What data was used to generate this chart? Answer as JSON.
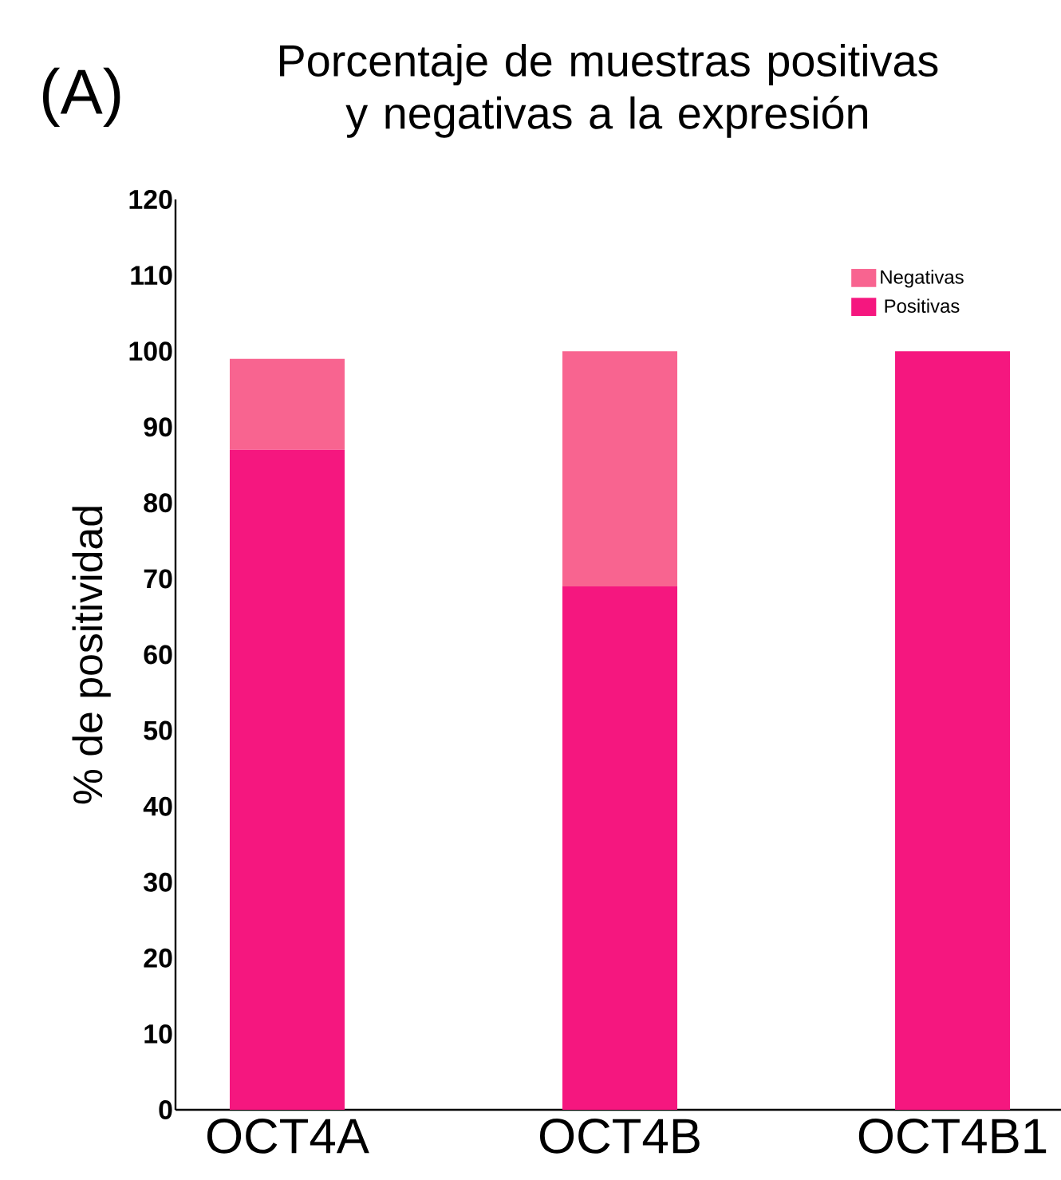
{
  "chart_data": {
    "type": "bar",
    "title": "Porcentaje de muestras positivas y negativas a la expresión",
    "ylabel": "% de positividad",
    "annotations": [
      "(A)"
    ],
    "categories": [
      "OCT4A",
      "OCT4B",
      "OCT4B1"
    ],
    "stacked": true,
    "legend": "top right",
    "grid": false,
    "series": [
      {
        "name": "Positivas",
        "color": "#f5177f",
        "values": [
          87,
          69,
          100
        ]
      },
      {
        "name": "Negativas",
        "color": "#f86490",
        "values": [
          12,
          31,
          0
        ]
      }
    ],
    "ylim": [
      0,
      120
    ],
    "yticks": [
      0,
      10,
      20,
      30,
      40,
      50,
      60,
      70,
      80,
      90,
      100,
      110,
      120
    ]
  }
}
